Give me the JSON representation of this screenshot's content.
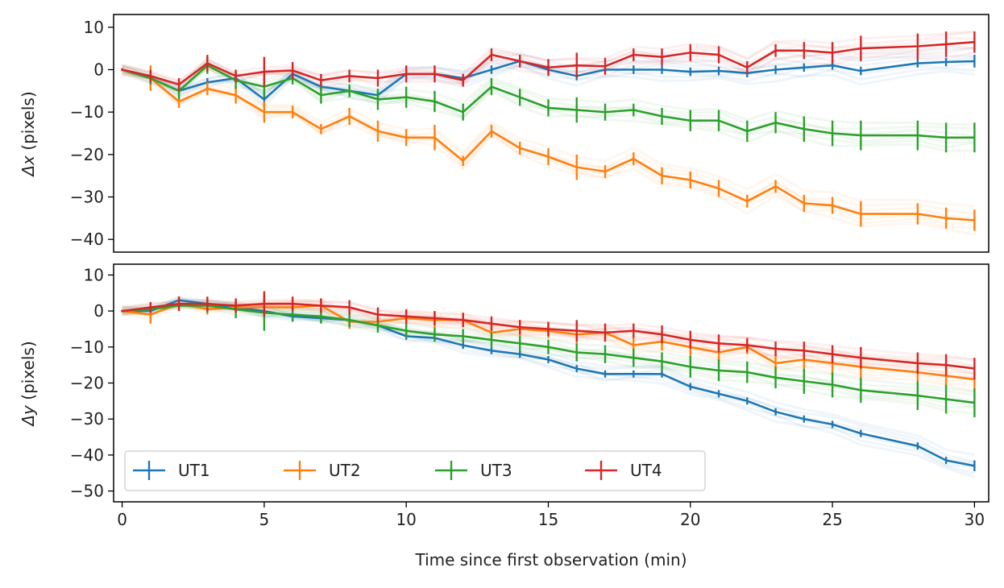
{
  "chart_data": [
    {
      "type": "line",
      "panel": "top",
      "ylabel_symbol": "Δx",
      "ylabel_unit": "(pixels)",
      "xlim": [
        -0.3,
        30.5
      ],
      "ylim": [
        -43,
        13
      ],
      "yticks": [
        10,
        0,
        -10,
        -20,
        -30,
        -40
      ],
      "yticks_label": [
        "10",
        "0",
        "−10",
        "−20",
        "−30",
        "−40"
      ],
      "x": [
        0,
        1,
        2,
        3,
        4,
        5,
        6,
        7,
        8,
        9,
        10,
        11,
        12,
        13,
        14,
        15,
        16,
        17,
        18,
        19,
        20,
        21,
        22,
        23,
        24,
        25,
        26,
        28,
        29,
        30
      ],
      "series": [
        {
          "name": "UT1",
          "color": "#1f77b4",
          "values": [
            0,
            -2,
            -5,
            -3,
            -2,
            -7,
            -1,
            -4,
            -5,
            -6,
            -1,
            -1,
            -2,
            0,
            2,
            0,
            -1.5,
            0,
            0,
            0,
            -0.5,
            -0.3,
            -0.8,
            0,
            0.5,
            1,
            -0.3,
            1.5,
            1.8,
            2
          ],
          "errors": [
            0.3,
            0.8,
            1,
            1,
            1,
            2,
            1,
            1,
            1,
            1,
            1,
            1,
            1,
            1,
            1,
            1,
            1,
            1,
            1,
            1,
            1,
            1,
            1,
            1,
            1,
            1,
            1,
            1,
            1,
            1.5
          ]
        },
        {
          "name": "UT2",
          "color": "#ff7f0e",
          "values": [
            0,
            -2,
            -7.5,
            -4.5,
            -6,
            -10,
            -10,
            -14,
            -11,
            -14.5,
            -16,
            -16,
            -21.5,
            -14.5,
            -18.5,
            -20.5,
            -23,
            -24,
            -21,
            -25,
            -26,
            -28,
            -31,
            -27.5,
            -31.5,
            -32,
            -34,
            -34,
            -35,
            -35.5
          ],
          "errors": [
            0.3,
            3,
            1.5,
            1.5,
            2,
            2.5,
            1.5,
            1.2,
            2,
            2.5,
            2,
            3,
            1.2,
            1.5,
            1.5,
            2,
            3,
            1.5,
            1.5,
            2,
            2,
            2,
            1.5,
            1.5,
            2,
            2,
            3,
            2.5,
            2.5,
            2.5
          ]
        },
        {
          "name": "UT3",
          "color": "#2ca02c",
          "values": [
            0,
            -2,
            -5,
            1,
            -2.5,
            -4,
            -2,
            -6,
            -5,
            -7,
            -6.5,
            -7.5,
            -10,
            -4,
            -6.5,
            -9,
            -9.5,
            -10,
            -9.5,
            -11,
            -12,
            -12,
            -14.5,
            -12.5,
            -14,
            -15,
            -15.5,
            -15.5,
            -16,
            -16
          ],
          "errors": [
            0.3,
            1.5,
            2,
            2,
            2,
            2.5,
            1.5,
            2,
            1.5,
            2.5,
            2.5,
            2.5,
            2,
            2,
            2,
            2,
            3,
            2,
            1.5,
            2,
            2.5,
            2.5,
            2.5,
            2.5,
            3,
            3,
            3.5,
            3.5,
            3.5,
            3.5
          ]
        },
        {
          "name": "UT4",
          "color": "#d62728",
          "values": [
            0,
            -1.5,
            -3.5,
            1.5,
            -1.5,
            -0.5,
            -0.2,
            -2.5,
            -1.5,
            -2,
            -1,
            -1,
            -2.5,
            3.5,
            2,
            0.5,
            1,
            0.8,
            3.5,
            3,
            4,
            3.5,
            0.5,
            4.5,
            4.5,
            4,
            5,
            5.5,
            6,
            6.5
          ],
          "errors": [
            0.3,
            1.5,
            1.5,
            2,
            1.5,
            3.5,
            2,
            1.5,
            1.5,
            2,
            2,
            2,
            1.5,
            1.5,
            1.5,
            2,
            3,
            2,
            1.5,
            2,
            2,
            2,
            1.5,
            1.5,
            2,
            2.5,
            3,
            3,
            3,
            2.5
          ]
        }
      ]
    },
    {
      "type": "line",
      "panel": "bottom",
      "ylabel_symbol": "Δy",
      "ylabel_unit": "(pixels)",
      "xlabel": "Time since first observation (min)",
      "xlim": [
        -0.3,
        30.5
      ],
      "ylim": [
        -53,
        13
      ],
      "yticks": [
        10,
        0,
        -10,
        -20,
        -30,
        -40,
        -50
      ],
      "yticks_label": [
        "10",
        "0",
        "−10",
        "−20",
        "−30",
        "−40",
        "−50"
      ],
      "xticks": [
        0,
        5,
        10,
        15,
        20,
        25,
        30
      ],
      "xticks_label": [
        "0",
        "5",
        "10",
        "15",
        "20",
        "25",
        "30"
      ],
      "x": [
        0,
        1,
        2,
        3,
        4,
        5,
        6,
        7,
        8,
        9,
        10,
        11,
        12,
        13,
        14,
        15,
        16,
        17,
        18,
        19,
        20,
        21,
        22,
        23,
        24,
        25,
        26,
        28,
        29,
        30
      ],
      "series": [
        {
          "name": "UT1",
          "color": "#1f77b4",
          "values": [
            0,
            0,
            3,
            2,
            1,
            0,
            -1.5,
            -2,
            -2.5,
            -4,
            -7,
            -7.5,
            -9.5,
            -11,
            -12,
            -13.5,
            -16,
            -17.5,
            -17.5,
            -17.5,
            -21,
            -23,
            -25,
            -28,
            -30,
            -31.5,
            -34,
            -37.5,
            -41.5,
            -43
          ],
          "errors": [
            0.3,
            1,
            1,
            1,
            1,
            1,
            1,
            1,
            1,
            1,
            1,
            1,
            1,
            1,
            1,
            1,
            1,
            1,
            1,
            1,
            1,
            1,
            1,
            1,
            1,
            1,
            1,
            1,
            1,
            1.5
          ]
        },
        {
          "name": "UT2",
          "color": "#ff7f0e",
          "values": [
            0,
            -1,
            2,
            0.5,
            1,
            1,
            1,
            1.5,
            -3,
            -3,
            -2,
            -2.5,
            -2.5,
            -6,
            -5,
            -5.5,
            -6.5,
            -6,
            -9.5,
            -8.5,
            -10,
            -11.5,
            -10,
            -14.5,
            -13.5,
            -14.5,
            -15.5,
            -17,
            -18,
            -19
          ],
          "errors": [
            0.3,
            2.5,
            1.5,
            1.5,
            1.5,
            2,
            2,
            2,
            2,
            2,
            2,
            2,
            2,
            2,
            2.5,
            2,
            2.5,
            2.5,
            2,
            2.5,
            2.5,
            2.5,
            2,
            2.5,
            2.5,
            3,
            3,
            3,
            3,
            3
          ]
        },
        {
          "name": "UT3",
          "color": "#2ca02c",
          "values": [
            0,
            0.5,
            1.5,
            1.5,
            0.5,
            -0.5,
            -1,
            -1.5,
            -2.5,
            -4,
            -5.5,
            -6.5,
            -7,
            -8,
            -9,
            -10,
            -11.5,
            -12,
            -13,
            -14,
            -15.5,
            -16.5,
            -17,
            -18.5,
            -19.5,
            -20.5,
            -22,
            -23.5,
            -24.5,
            -25.5
          ],
          "errors": [
            0.3,
            1,
            1.5,
            2,
            2.5,
            5,
            2,
            2,
            2,
            2,
            2,
            2,
            2,
            2,
            2,
            2,
            2.5,
            2.5,
            2.5,
            2.5,
            3,
            3,
            3,
            3,
            3.5,
            3.5,
            3.5,
            4,
            4,
            4
          ]
        },
        {
          "name": "UT4",
          "color": "#d62728",
          "values": [
            0,
            1,
            2,
            2,
            1.5,
            2,
            2,
            1.5,
            1,
            -1,
            -1.5,
            -2,
            -2.5,
            -3.5,
            -4.5,
            -5,
            -5.5,
            -6,
            -5.5,
            -6.5,
            -8,
            -9,
            -9.5,
            -10.5,
            -11,
            -12,
            -13,
            -14.5,
            -15,
            -16
          ],
          "errors": [
            0.3,
            1.5,
            2,
            2,
            2,
            3.5,
            2,
            2,
            2,
            2,
            2,
            2,
            2,
            2,
            2,
            2,
            3,
            2.5,
            2,
            2.5,
            2.5,
            2.5,
            2,
            2,
            2.5,
            2.5,
            3,
            3,
            3,
            3
          ]
        }
      ]
    }
  ],
  "legend": {
    "placement": "lower-left",
    "entries": [
      "UT1",
      "UT2",
      "UT3",
      "UT4"
    ]
  }
}
